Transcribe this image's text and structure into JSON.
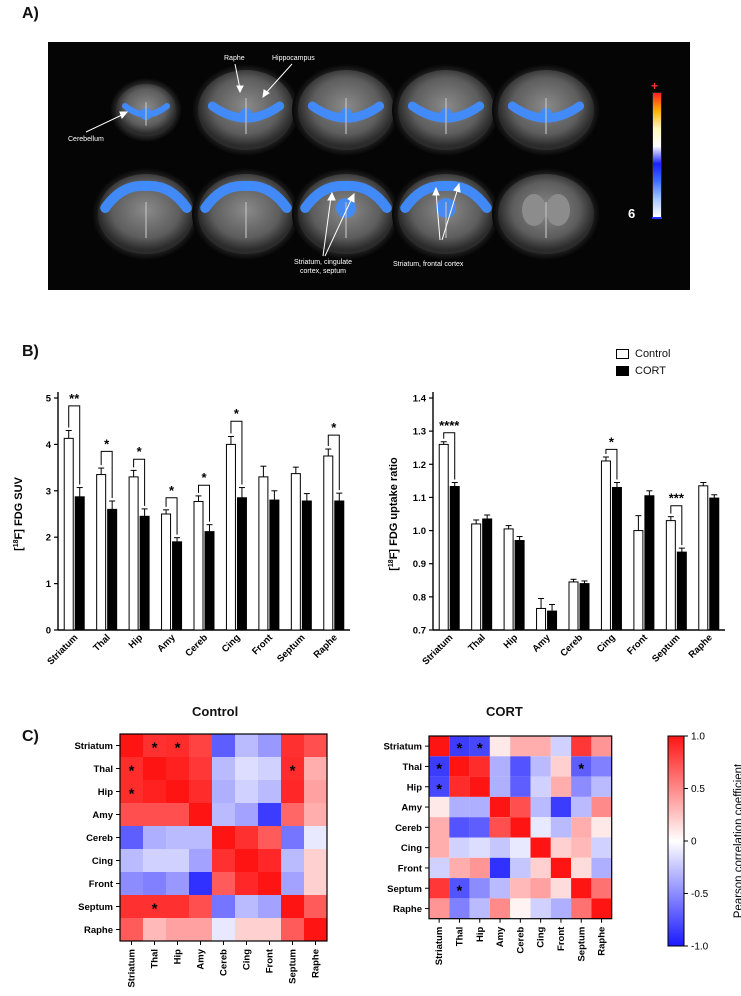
{
  "panels": {
    "a_label": "A)",
    "b_label": "B)",
    "c_label": "C)"
  },
  "panel_a": {
    "annotations": {
      "raphe": "Raphe",
      "hippocampus": "Hippocampus",
      "cerebellum": "Cerebellum",
      "striatum_cing_septum": "Striatum, cingulate cortex, septum",
      "striatum_frontal": "Striatum, frontal cortex"
    },
    "colorbar": {
      "top_label": "+",
      "bottom_label": "6",
      "colors": [
        "#ff2020",
        "#ffb000",
        "#fff8c0",
        "#ffffff",
        "#1a20ff",
        "#4070ff",
        "#a8c8ff",
        "#ffffff"
      ]
    },
    "overlay_color": "#3f8cff"
  },
  "legend": {
    "control": "Control",
    "cort": "CORT"
  },
  "chart_data": [
    {
      "type": "bar",
      "ylabel": "[18F] FDG SUV",
      "ylim": [
        0,
        5
      ],
      "yticks": [
        "0",
        "1",
        "2",
        "3",
        "4",
        "5"
      ],
      "categories": [
        "Striatum",
        "Thal",
        "Hip",
        "Amy",
        "Cereb",
        "Cing",
        "Front",
        "Septum",
        "Raphe"
      ],
      "series": [
        {
          "name": "Control",
          "values": [
            4.13,
            3.35,
            3.3,
            2.5,
            2.77,
            4.0,
            3.3,
            3.37,
            3.75
          ],
          "errors": [
            0.17,
            0.14,
            0.14,
            0.09,
            0.12,
            0.17,
            0.23,
            0.14,
            0.15
          ]
        },
        {
          "name": "CORT",
          "values": [
            2.87,
            2.6,
            2.45,
            1.9,
            2.12,
            2.85,
            2.8,
            2.78,
            2.78
          ],
          "errors": [
            0.2,
            0.18,
            0.16,
            0.09,
            0.15,
            0.22,
            0.2,
            0.16,
            0.17
          ]
        }
      ],
      "significance": [
        {
          "category": 0,
          "label": "**",
          "y": 4.83
        },
        {
          "category": 1,
          "label": "*",
          "y": 3.85
        },
        {
          "category": 2,
          "label": "*",
          "y": 3.68
        },
        {
          "category": 3,
          "label": "*",
          "y": 2.85
        },
        {
          "category": 4,
          "label": "*",
          "y": 3.12
        },
        {
          "category": 5,
          "label": "*",
          "y": 4.5
        },
        {
          "category": 8,
          "label": "*",
          "y": 4.2
        }
      ]
    },
    {
      "type": "bar",
      "ylabel": "[18F] FDG uptake ratio",
      "ylim": [
        0.7,
        1.4
      ],
      "yticks": [
        "0.7",
        "0.8",
        "0.9",
        "1.0",
        "1.1",
        "1.2",
        "1.3",
        "1.4"
      ],
      "categories": [
        "Striatum",
        "Thal",
        "Hip",
        "Amy",
        "Cereb",
        "Cing",
        "Front",
        "Septum",
        "Raphe"
      ],
      "series": [
        {
          "name": "Control",
          "values": [
            1.26,
            1.02,
            1.005,
            0.765,
            0.845,
            1.21,
            1.0,
            1.03,
            1.135
          ],
          "errors": [
            0.008,
            0.012,
            0.01,
            0.03,
            0.008,
            0.012,
            0.045,
            0.012,
            0.01
          ]
        },
        {
          "name": "CORT",
          "values": [
            1.133,
            1.035,
            0.97,
            0.757,
            0.84,
            1.13,
            1.105,
            0.935,
            1.098
          ],
          "errors": [
            0.012,
            0.012,
            0.012,
            0.02,
            0.008,
            0.015,
            0.015,
            0.012,
            0.01
          ]
        }
      ],
      "significance": [
        {
          "category": 0,
          "label": "****",
          "y": 1.295
        },
        {
          "category": 5,
          "label": "*",
          "y": 1.245
        },
        {
          "category": 7,
          "label": "***",
          "y": 1.075
        }
      ]
    },
    {
      "type": "heatmap",
      "title": "Control",
      "labels": [
        "Striatum",
        "Thal",
        "Hip",
        "Amy",
        "Cereb",
        "Cing",
        "Front",
        "Septum",
        "Raphe"
      ],
      "values": [
        [
          1.0,
          0.88,
          0.9,
          0.8,
          -0.7,
          -0.3,
          -0.45,
          0.88,
          0.75
        ],
        [
          0.9,
          1.0,
          0.95,
          0.85,
          -0.3,
          -0.15,
          -0.2,
          0.9,
          0.35
        ],
        [
          0.9,
          0.95,
          1.0,
          0.9,
          -0.35,
          -0.2,
          -0.3,
          0.92,
          0.4
        ],
        [
          0.75,
          0.75,
          0.75,
          1.0,
          -0.3,
          -0.4,
          -0.85,
          0.65,
          0.35
        ],
        [
          -0.7,
          -0.35,
          -0.3,
          -0.3,
          1.0,
          0.88,
          0.7,
          -0.6,
          -0.1
        ],
        [
          -0.3,
          -0.2,
          -0.2,
          -0.4,
          0.88,
          1.0,
          0.92,
          -0.3,
          0.2
        ],
        [
          -0.5,
          -0.55,
          -0.45,
          -0.9,
          0.7,
          0.92,
          1.0,
          -0.4,
          0.2
        ],
        [
          0.88,
          0.88,
          0.88,
          0.75,
          -0.6,
          -0.3,
          -0.4,
          1.0,
          0.7
        ],
        [
          0.7,
          0.3,
          0.4,
          0.4,
          -0.1,
          0.2,
          0.2,
          0.7,
          1.0
        ]
      ],
      "stars": [
        [
          0,
          1
        ],
        [
          0,
          2
        ],
        [
          1,
          0
        ],
        [
          1,
          7
        ],
        [
          2,
          0
        ],
        [
          7,
          1
        ]
      ],
      "colorbar_label": "Pearson correlation coefficient",
      "colorbar_ticks": [
        "1.0",
        "0.5",
        "0",
        "-0.5",
        "-1.0"
      ]
    },
    {
      "type": "heatmap",
      "title": "CORT",
      "labels": [
        "Striatum",
        "Thal",
        "Hip",
        "Amy",
        "Cereb",
        "Cing",
        "Front",
        "Septum",
        "Raphe"
      ],
      "values": [
        [
          1.0,
          -0.85,
          -0.8,
          0.1,
          0.35,
          0.35,
          -0.2,
          0.85,
          0.45
        ],
        [
          -0.85,
          1.0,
          0.9,
          -0.35,
          -0.75,
          -0.3,
          0.2,
          -0.7,
          -0.55
        ],
        [
          -0.8,
          0.9,
          1.0,
          -0.35,
          -0.7,
          -0.2,
          0.35,
          -0.5,
          -0.3
        ],
        [
          0.1,
          -0.35,
          -0.35,
          1.0,
          0.75,
          -0.3,
          -0.85,
          -0.3,
          0.5
        ],
        [
          0.35,
          -0.75,
          -0.7,
          0.75,
          1.0,
          -0.1,
          -0.3,
          0.35,
          0.1
        ],
        [
          0.35,
          -0.2,
          -0.15,
          -0.25,
          -0.1,
          1.0,
          0.2,
          0.3,
          -0.2
        ],
        [
          -0.2,
          0.35,
          0.45,
          -0.9,
          -0.25,
          0.2,
          1.0,
          0.15,
          -0.35
        ],
        [
          0.85,
          -0.75,
          -0.5,
          -0.3,
          0.3,
          0.4,
          0.15,
          1.0,
          0.6
        ],
        [
          0.45,
          -0.55,
          -0.3,
          0.5,
          0.05,
          -0.2,
          -0.35,
          0.6,
          1.0
        ]
      ],
      "stars": [
        [
          0,
          1
        ],
        [
          0,
          2
        ],
        [
          1,
          0
        ],
        [
          1,
          7
        ],
        [
          2,
          0
        ],
        [
          7,
          1
        ]
      ]
    }
  ]
}
